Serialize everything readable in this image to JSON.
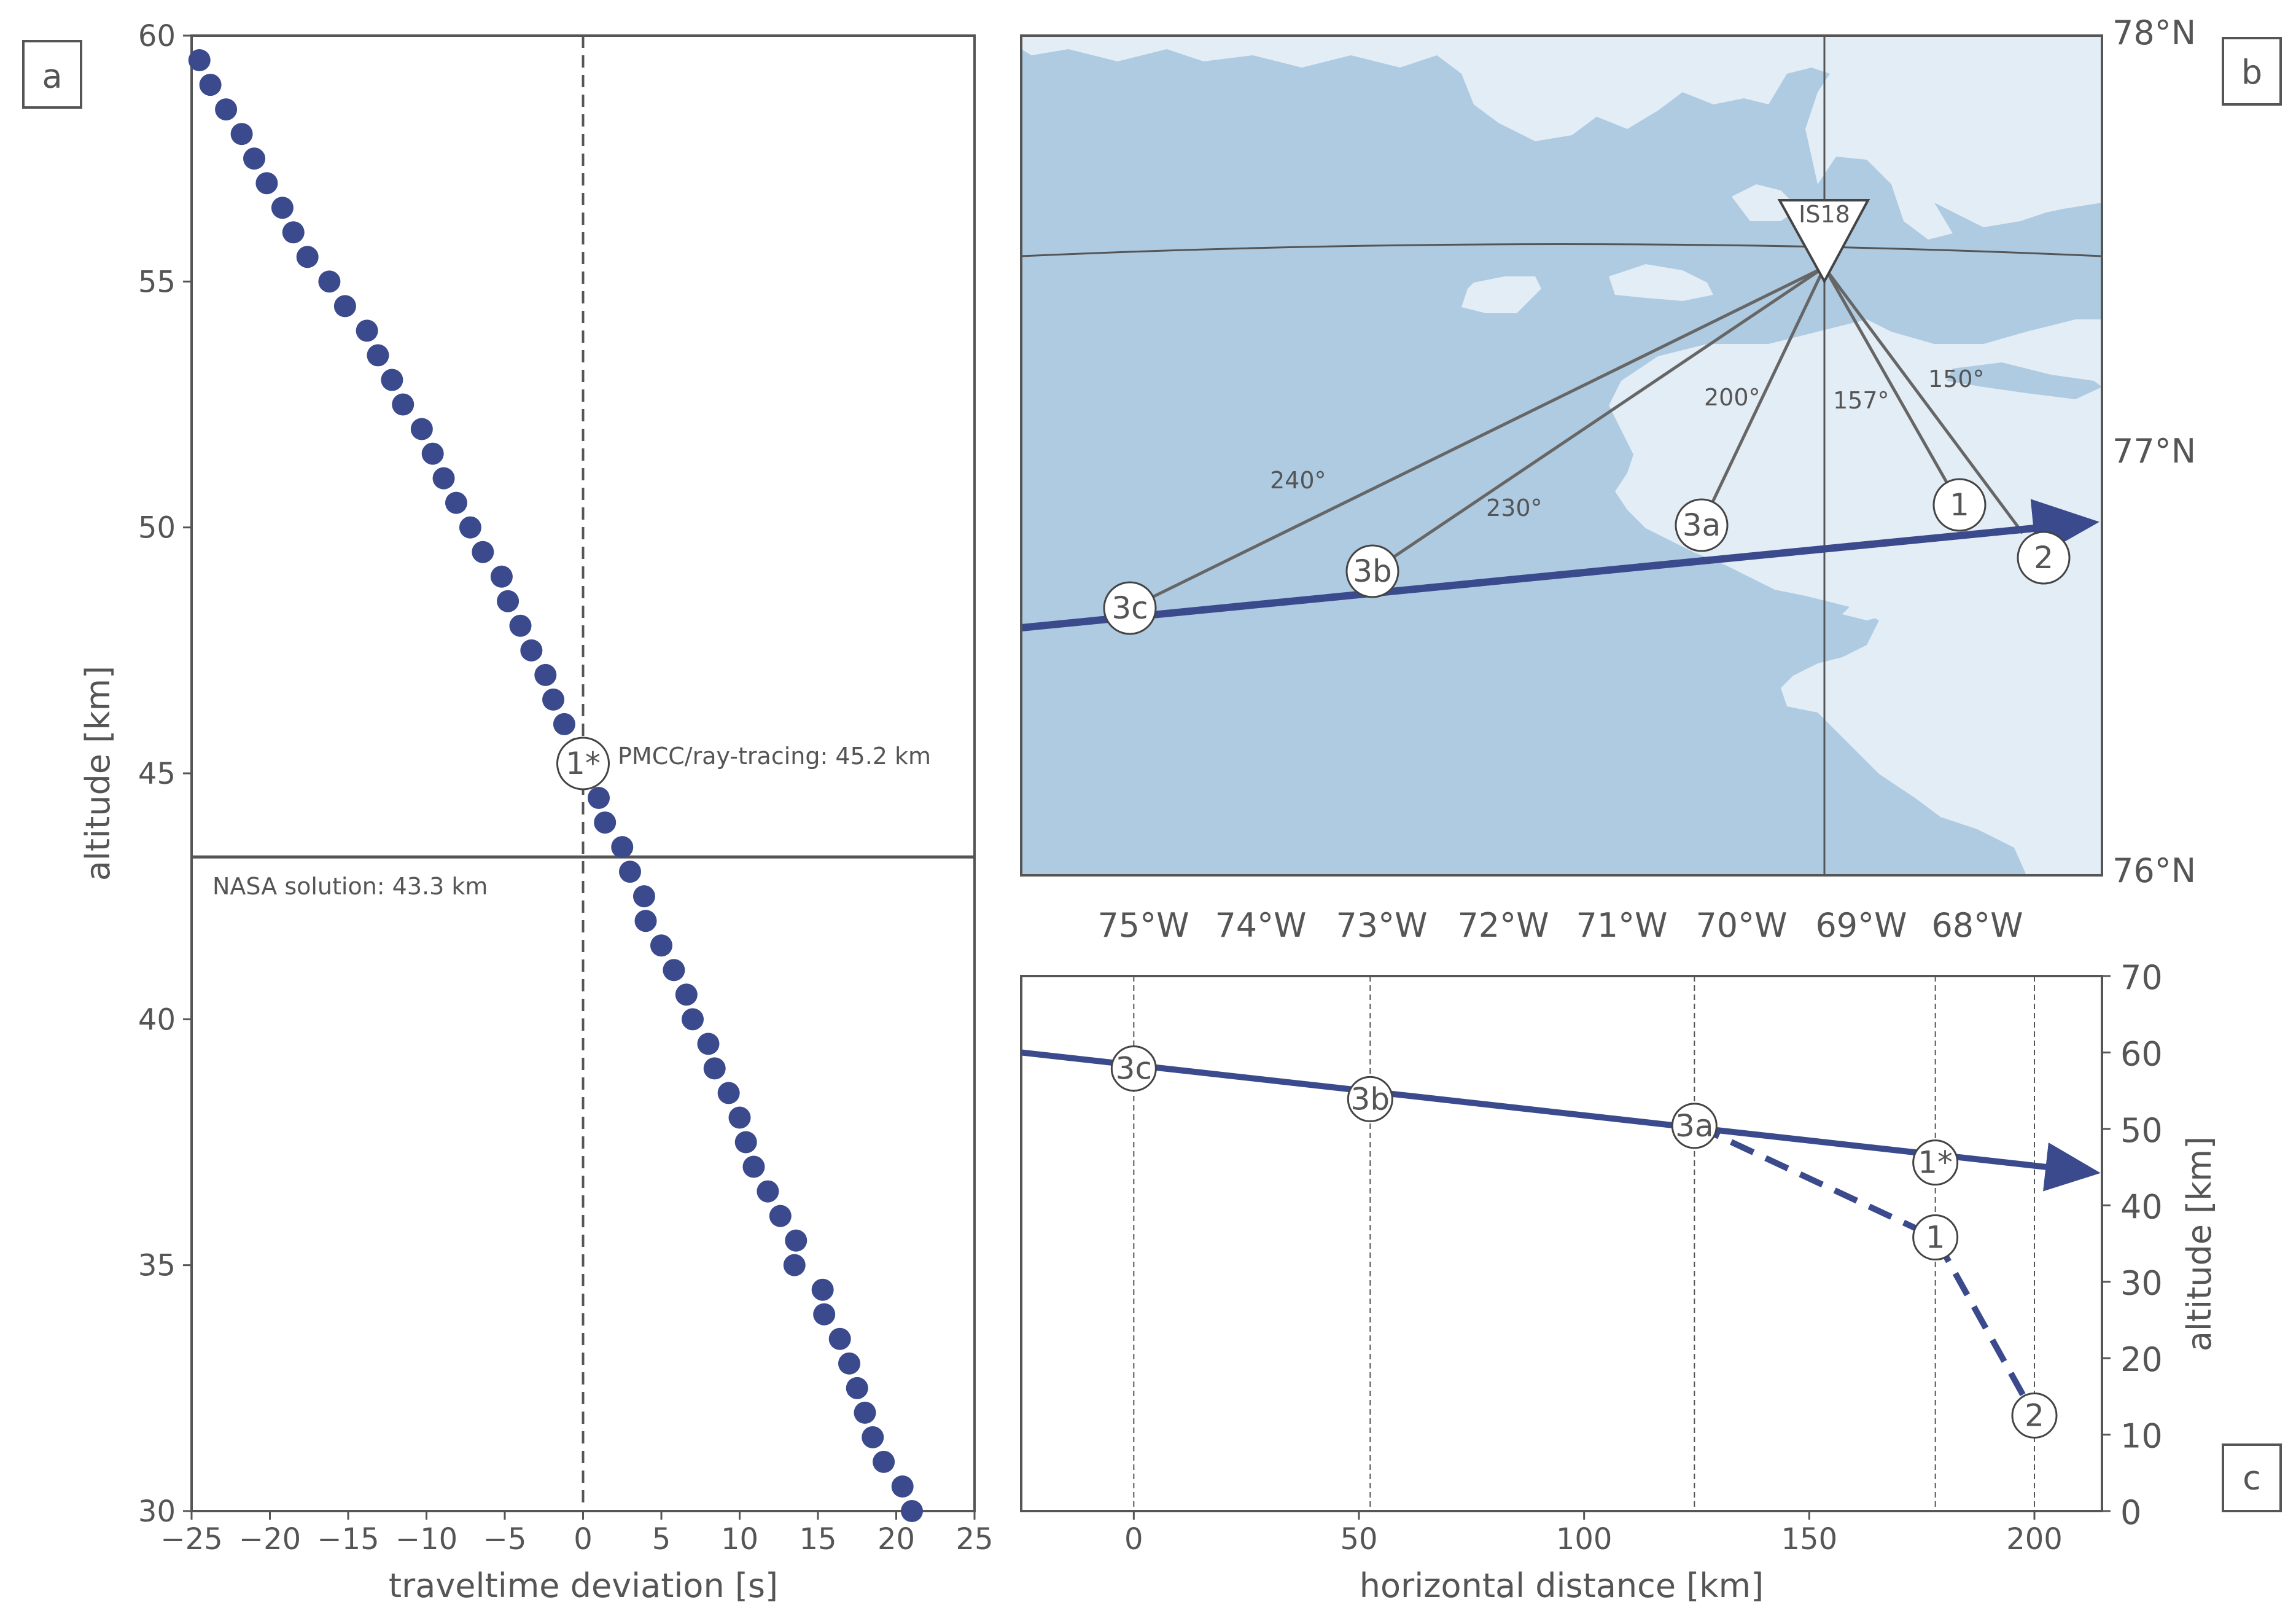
{
  "panels": {
    "a": "a",
    "b": "b",
    "c": "c"
  },
  "colors": {
    "track": "#3a4a8c",
    "points": "#3a4a8c",
    "ocean": "#aecbe2",
    "land": "#e3edf6",
    "axis": "#555555",
    "line": "#666666"
  },
  "chart_data": [
    {
      "id": "a",
      "type": "scatter",
      "xlabel": "traveltime deviation [s]",
      "ylabel": "altitude [km]",
      "xlim": [
        -25,
        25
      ],
      "ylim": [
        30,
        60
      ],
      "xticks": [
        -25,
        -20,
        -15,
        -10,
        -5,
        0,
        5,
        10,
        15,
        20,
        25
      ],
      "yticks": [
        30,
        35,
        40,
        45,
        50,
        55,
        60
      ],
      "xtick_labels": [
        "−25",
        "−20",
        "−15",
        "−10",
        "−5",
        "0",
        "5",
        "10",
        "15",
        "20",
        "25"
      ],
      "ytick_labels": [
        "30",
        "35",
        "40",
        "45",
        "50",
        "55",
        "60"
      ],
      "points": [
        [
          -24.5,
          59.5
        ],
        [
          -23.8,
          59.0
        ],
        [
          -22.8,
          58.5
        ],
        [
          -21.8,
          58.0
        ],
        [
          -21.0,
          57.5
        ],
        [
          -20.2,
          57.0
        ],
        [
          -19.2,
          56.5
        ],
        [
          -18.5,
          56.0
        ],
        [
          -17.6,
          55.5
        ],
        [
          -16.2,
          55.0
        ],
        [
          -15.2,
          54.5
        ],
        [
          -13.8,
          54.0
        ],
        [
          -13.1,
          53.5
        ],
        [
          -12.2,
          53.0
        ],
        [
          -11.5,
          52.5
        ],
        [
          -10.3,
          52.0
        ],
        [
          -9.6,
          51.5
        ],
        [
          -8.9,
          51.0
        ],
        [
          -8.1,
          50.5
        ],
        [
          -7.2,
          50.0
        ],
        [
          -6.4,
          49.5
        ],
        [
          -5.2,
          49.0
        ],
        [
          -4.8,
          48.5
        ],
        [
          -4.0,
          48.0
        ],
        [
          -3.3,
          47.5
        ],
        [
          -2.4,
          47.0
        ],
        [
          -1.9,
          46.5
        ],
        [
          -1.2,
          46.0
        ],
        [
          -0.4,
          45.5
        ],
        [
          0.3,
          45.0
        ],
        [
          1.0,
          44.5
        ],
        [
          1.4,
          44.0
        ],
        [
          2.5,
          43.5
        ],
        [
          3.0,
          43.0
        ],
        [
          3.9,
          42.5
        ],
        [
          4.0,
          42.0
        ],
        [
          5.0,
          41.5
        ],
        [
          5.8,
          41.0
        ],
        [
          6.6,
          40.5
        ],
        [
          7.0,
          40.0
        ],
        [
          8.0,
          39.5
        ],
        [
          8.4,
          39.0
        ],
        [
          9.3,
          38.5
        ],
        [
          10.0,
          38.0
        ],
        [
          10.4,
          37.5
        ],
        [
          10.9,
          37.0
        ],
        [
          11.8,
          36.5
        ],
        [
          12.6,
          36.0
        ],
        [
          13.6,
          35.5
        ],
        [
          13.5,
          35.0
        ],
        [
          15.3,
          34.5
        ],
        [
          15.4,
          34.0
        ],
        [
          16.4,
          33.5
        ],
        [
          17.0,
          33.0
        ],
        [
          17.5,
          32.5
        ],
        [
          18.0,
          32.0
        ],
        [
          18.5,
          31.5
        ],
        [
          19.2,
          31.0
        ],
        [
          20.4,
          30.5
        ],
        [
          21.0,
          30.0
        ]
      ],
      "vline_x": 0,
      "hline_y": 43.3,
      "marker": {
        "label": "1*",
        "x": 0,
        "y": 45.2
      },
      "annotations": {
        "pmcc": "PMCC/ray-tracing: 45.2 km",
        "nasa": "NASA solution: 43.3 km"
      }
    },
    {
      "id": "b",
      "type": "map",
      "lon_range": [
        -75.9,
        -66.9
      ],
      "lat_range": [
        76,
        78
      ],
      "xtick_labels": [
        "75°W",
        "74°W",
        "73°W",
        "72°W",
        "71°W",
        "70°W",
        "69°W",
        "68°W"
      ],
      "ytick_labels": [
        "76°N",
        "77°N",
        "78°N"
      ],
      "station": {
        "label": "IS18",
        "lon": -69.2,
        "lat": 77.5
      },
      "track": {
        "start": [
          -75.9,
          76.6
        ],
        "end": [
          -66.9,
          76.85
        ]
      },
      "markers": [
        {
          "label": "3c",
          "lon": -74.95,
          "lat": 76.64
        },
        {
          "label": "3b",
          "lon": -72.9,
          "lat": 76.69
        },
        {
          "label": "3a",
          "lon": -70.2,
          "lat": 76.78
        },
        {
          "label": "1",
          "lon": -68.05,
          "lat": 76.82
        },
        {
          "label": "2",
          "lon": -67.35,
          "lat": 76.75
        }
      ],
      "azimuths": [
        "240°",
        "230°",
        "200°",
        "157°",
        "150°"
      ]
    },
    {
      "id": "c",
      "type": "line",
      "xlabel": "horizontal distance [km]",
      "ylabel": "altitude [km]",
      "xlim": [
        -25,
        215
      ],
      "ylim": [
        0,
        70
      ],
      "xticks": [
        0,
        50,
        100,
        150,
        200
      ],
      "yticks": [
        0,
        10,
        20,
        30,
        40,
        50,
        60,
        70
      ],
      "xtick_labels": [
        "0",
        "50",
        "100",
        "150",
        "200"
      ],
      "ytick_labels": [
        "0",
        "10",
        "20",
        "30",
        "40",
        "50",
        "60",
        "70"
      ],
      "track": {
        "x": [
          -25,
          212
        ],
        "y": [
          60,
          44.4
        ]
      },
      "dashed": {
        "x": [
          125,
          178,
          200
        ],
        "y": [
          50.4,
          35.8,
          12.5
        ]
      },
      "vlines": [
        0,
        52.5,
        124.5,
        178,
        200
      ],
      "markers": [
        {
          "label": "3c",
          "x": 0,
          "y": 57.9
        },
        {
          "label": "3b",
          "x": 52.5,
          "y": 53.9
        },
        {
          "label": "3a",
          "x": 124.5,
          "y": 50.4
        },
        {
          "label": "1*",
          "x": 178,
          "y": 45.6
        },
        {
          "label": "1",
          "x": 178,
          "y": 35.8
        },
        {
          "label": "2",
          "x": 200,
          "y": 12.5
        }
      ]
    }
  ]
}
